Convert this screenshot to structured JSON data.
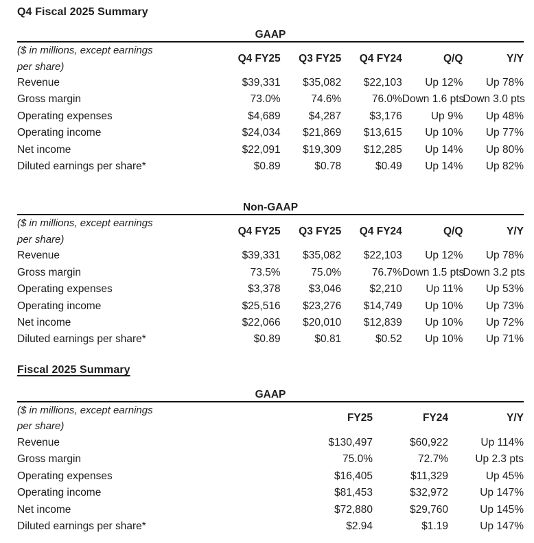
{
  "colors": {
    "background": "#ffffff",
    "text": "#1e1e1e",
    "rule": "#111111"
  },
  "sections": [
    {
      "title": "Q4 Fiscal 2025 Summary",
      "tables": [
        {
          "caption": "GAAP",
          "note": [
            "($ in millions, except earnings",
            "per share)"
          ],
          "columns": [
            "Q4 FY25",
            "Q3 FY25",
            "Q4 FY24",
            "Q/Q",
            "Y/Y"
          ],
          "rows": [
            {
              "label": "Revenue",
              "values": [
                "$39,331",
                "$35,082",
                "$22,103",
                "Up 12%",
                "Up 78%"
              ]
            },
            {
              "label": "Gross margin",
              "values": [
                "73.0%",
                "74.6%",
                "76.0%",
                "Down 1.6 pts",
                "Down 3.0 pts"
              ]
            },
            {
              "label": "Operating expenses",
              "values": [
                "$4,689",
                "$4,287",
                "$3,176",
                "Up 9%",
                "Up 48%"
              ]
            },
            {
              "label": "Operating income",
              "values": [
                "$24,034",
                "$21,869",
                "$13,615",
                "Up 10%",
                "Up 77%"
              ]
            },
            {
              "label": "Net income",
              "values": [
                "$22,091",
                "$19,309",
                "$12,285",
                "Up 14%",
                "Up 80%"
              ]
            },
            {
              "label": "Diluted earnings per share*",
              "values": [
                "$0.89",
                "$0.78",
                "$0.49",
                "Up 14%",
                "Up 82%"
              ]
            }
          ]
        },
        {
          "caption": "Non-GAAP",
          "note": [
            "($ in millions, except earnings",
            "per share)"
          ],
          "columns": [
            "Q4 FY25",
            "Q3 FY25",
            "Q4 FY24",
            "Q/Q",
            "Y/Y"
          ],
          "rows": [
            {
              "label": "Revenue",
              "values": [
                "$39,331",
                "$35,082",
                "$22,103",
                "Up 12%",
                "Up 78%"
              ]
            },
            {
              "label": "Gross margin",
              "values": [
                "73.5%",
                "75.0%",
                "76.7%",
                "Down 1.5 pts",
                "Down 3.2 pts"
              ]
            },
            {
              "label": "Operating expenses",
              "values": [
                "$3,378",
                "$3,046",
                "$2,210",
                "Up 11%",
                "Up 53%"
              ]
            },
            {
              "label": "Operating income",
              "values": [
                "$25,516",
                "$23,276",
                "$14,749",
                "Up 10%",
                "Up 73%"
              ]
            },
            {
              "label": "Net income",
              "values": [
                "$22,066",
                "$20,010",
                "$12,839",
                "Up 10%",
                "Up 72%"
              ]
            },
            {
              "label": "Diluted earnings per share*",
              "values": [
                "$0.89",
                "$0.81",
                "$0.52",
                "Up 10%",
                "Up 71%"
              ]
            }
          ]
        }
      ]
    },
    {
      "title": "Fiscal 2025 Summary",
      "tables": [
        {
          "caption": "GAAP",
          "note": [
            "($ in millions, except earnings",
            "per share)"
          ],
          "columns": [
            "FY25",
            "FY24",
            "Y/Y"
          ],
          "rows": [
            {
              "label": "Revenue",
              "values": [
                "$130,497",
                "$60,922",
                "Up 114%"
              ]
            },
            {
              "label": "Gross margin",
              "values": [
                "75.0%",
                "72.7%",
                "Up 2.3 pts"
              ]
            },
            {
              "label": "Operating expenses",
              "values": [
                "$16,405",
                "$11,329",
                "Up 45%"
              ]
            },
            {
              "label": "Operating income",
              "values": [
                "$81,453",
                "$32,972",
                "Up 147%"
              ]
            },
            {
              "label": "Net income",
              "values": [
                "$72,880",
                "$29,760",
                "Up 145%"
              ]
            },
            {
              "label": "Diluted earnings per share*",
              "values": [
                "$2.94",
                "$1.19",
                "Up 147%"
              ]
            }
          ]
        }
      ]
    }
  ]
}
